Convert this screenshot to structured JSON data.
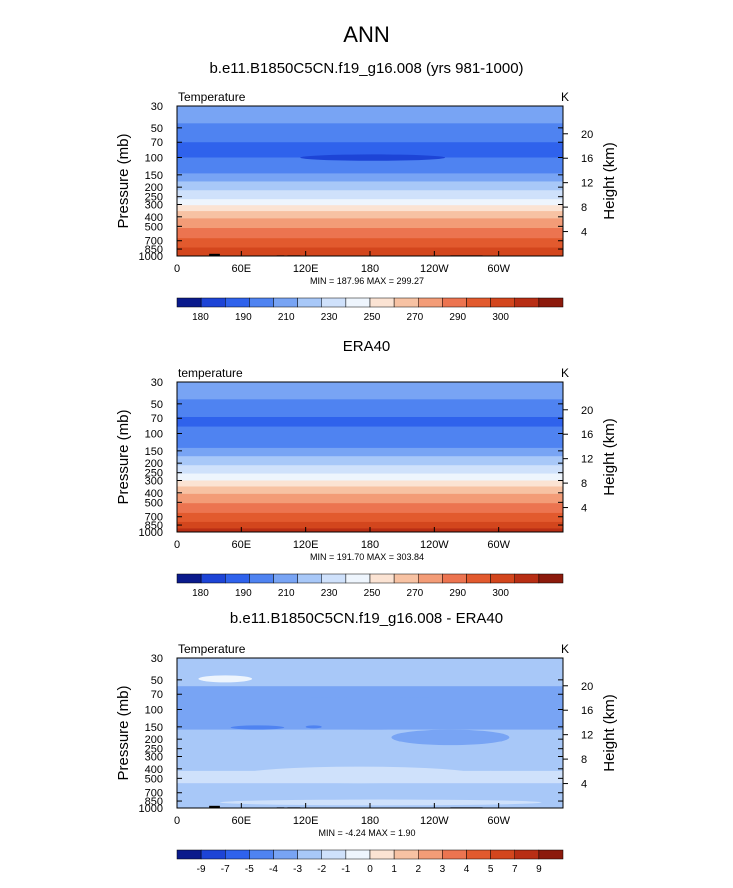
{
  "page": {
    "title": "ANN"
  },
  "chart_data": [
    {
      "type": "heatmap",
      "title": "b.e11.B1850C5CN.f19_g16.008 (yrs 981-1000)",
      "left_label": "Temperature",
      "units": "K",
      "ylabel": "Pressure (mb)",
      "y2label": "Height (km)",
      "x_ticks": [
        "0",
        "60E",
        "120E",
        "180",
        "120W",
        "60W"
      ],
      "y_ticks": [
        "30",
        "50",
        "70",
        "100",
        "150",
        "200",
        "250",
        "300",
        "400",
        "500",
        "700",
        "850",
        "1000"
      ],
      "y2_ticks": [
        "20",
        "16",
        "12",
        "8",
        "4"
      ],
      "minmax": "MIN = 187.96  MAX = 299.27",
      "min": 187.96,
      "max": 299.27,
      "colorbar_labels": [
        "180",
        "190",
        "210",
        "230",
        "250",
        "270",
        "290",
        "300"
      ],
      "bands": [
        {
          "p": 30,
          "color": "#a8c8f8"
        },
        {
          "p": 45,
          "color": "#78a4f4"
        },
        {
          "p": 70,
          "color": "#4f83f1"
        },
        {
          "p": 100,
          "color": "#2f62ec"
        },
        {
          "p": 145,
          "color": "#4f83f1"
        },
        {
          "p": 175,
          "color": "#78a4f4"
        },
        {
          "p": 215,
          "color": "#a8c8f8"
        },
        {
          "p": 265,
          "color": "#cfe1fb"
        },
        {
          "p": 305,
          "color": "#eef5fd"
        },
        {
          "p": 350,
          "color": "#fbe3d3"
        },
        {
          "p": 415,
          "color": "#f7c2a3"
        },
        {
          "p": 520,
          "color": "#f39c77"
        },
        {
          "p": 660,
          "color": "#ec7450"
        },
        {
          "p": 820,
          "color": "#e25a2e"
        },
        {
          "p": 1000,
          "color": "#d3461d"
        }
      ],
      "features": [
        {
          "lon0": 115,
          "lon1": 250,
          "p0": 93,
          "p1": 108,
          "color": "#1d44d6"
        }
      ],
      "terrain": true
    },
    {
      "type": "heatmap",
      "title": "ERA40",
      "left_label": "temperature",
      "units": "K",
      "ylabel": "Pressure (mb)",
      "y2label": "Height (km)",
      "x_ticks": [
        "0",
        "60E",
        "120E",
        "180",
        "120W",
        "60W"
      ],
      "y_ticks": [
        "30",
        "50",
        "70",
        "100",
        "150",
        "200",
        "250",
        "300",
        "400",
        "500",
        "700",
        "850",
        "1000"
      ],
      "y2_ticks": [
        "20",
        "16",
        "12",
        "8",
        "4"
      ],
      "minmax": "MIN = 191.70  MAX = 303.84",
      "min": 191.7,
      "max": 303.84,
      "colorbar_labels": [
        "180",
        "190",
        "210",
        "230",
        "250",
        "270",
        "290",
        "300"
      ],
      "bands": [
        {
          "p": 30,
          "color": "#a8c8f8"
        },
        {
          "p": 45,
          "color": "#78a4f4"
        },
        {
          "p": 68,
          "color": "#4f83f1"
        },
        {
          "p": 85,
          "color": "#2f62ec"
        },
        {
          "p": 140,
          "color": "#4f83f1"
        },
        {
          "p": 170,
          "color": "#78a4f4"
        },
        {
          "p": 210,
          "color": "#a8c8f8"
        },
        {
          "p": 255,
          "color": "#cfe1fb"
        },
        {
          "p": 300,
          "color": "#eef5fd"
        },
        {
          "p": 345,
          "color": "#fbe3d3"
        },
        {
          "p": 410,
          "color": "#f7c2a3"
        },
        {
          "p": 510,
          "color": "#f39c77"
        },
        {
          "p": 640,
          "color": "#ec7450"
        },
        {
          "p": 790,
          "color": "#e25a2e"
        },
        {
          "p": 920,
          "color": "#d3461d"
        },
        {
          "p": 1000,
          "color": "#b82e14"
        }
      ],
      "features": [],
      "terrain": false
    },
    {
      "type": "heatmap",
      "title": "b.e11.B1850C5CN.f19_g16.008 - ERA40",
      "left_label": "Temperature",
      "units": "K",
      "ylabel": "Pressure (mb)",
      "y2label": "Height (km)",
      "x_ticks": [
        "0",
        "60E",
        "120E",
        "180",
        "120W",
        "60W"
      ],
      "y_ticks": [
        "30",
        "50",
        "70",
        "100",
        "150",
        "200",
        "250",
        "300",
        "400",
        "500",
        "700",
        "850",
        "1000"
      ],
      "y2_ticks": [
        "20",
        "16",
        "12",
        "8",
        "4"
      ],
      "minmax": "MIN = -4.24  MAX =  1.90",
      "min": -4.24,
      "max": 1.9,
      "colorbar_labels": [
        "-9",
        "-7",
        "-5",
        "-4",
        "-3",
        "-2",
        "-1",
        "0",
        "1",
        "2",
        "3",
        "4",
        "5",
        "7",
        "9"
      ],
      "bands": [
        {
          "p": 30,
          "color": "#a8c8f8"
        },
        {
          "p": 58,
          "color": "#a8c8f8"
        },
        {
          "p": 75,
          "color": "#78a4f4"
        },
        {
          "p": 160,
          "color": "#78a4f4"
        },
        {
          "p": 230,
          "color": "#a8c8f8"
        },
        {
          "p": 420,
          "color": "#a8c8f8"
        },
        {
          "p": 560,
          "color": "#cfe1fb"
        },
        {
          "p": 760,
          "color": "#a8c8f8"
        },
        {
          "p": 1000,
          "color": "#a8c8f8"
        }
      ],
      "features": [
        {
          "lon0": 0,
          "lon1": 360,
          "p0": 75,
          "p1": 160,
          "color": "#78a4f4"
        },
        {
          "lon0": 200,
          "lon1": 310,
          "p0": 160,
          "p1": 230,
          "color": "#78a4f4"
        },
        {
          "lon0": 20,
          "lon1": 70,
          "p0": 45,
          "p1": 53,
          "color": "#eef5fd"
        },
        {
          "lon0": 50,
          "lon1": 100,
          "p0": 145,
          "p1": 160,
          "color": "#4f83f1"
        },
        {
          "lon0": 120,
          "lon1": 135,
          "p0": 145,
          "p1": 155,
          "color": "#4f83f1"
        },
        {
          "lon0": 60,
          "lon1": 280,
          "p0": 380,
          "p1": 560,
          "color": "#cfe1fb"
        },
        {
          "lon0": 285,
          "lon1": 300,
          "p0": 420,
          "p1": 520,
          "color": "#cfe1fb"
        },
        {
          "lon0": 40,
          "lon1": 340,
          "p0": 820,
          "p1": 940,
          "color": "#cfe1fb"
        }
      ],
      "terrain": true
    }
  ]
}
